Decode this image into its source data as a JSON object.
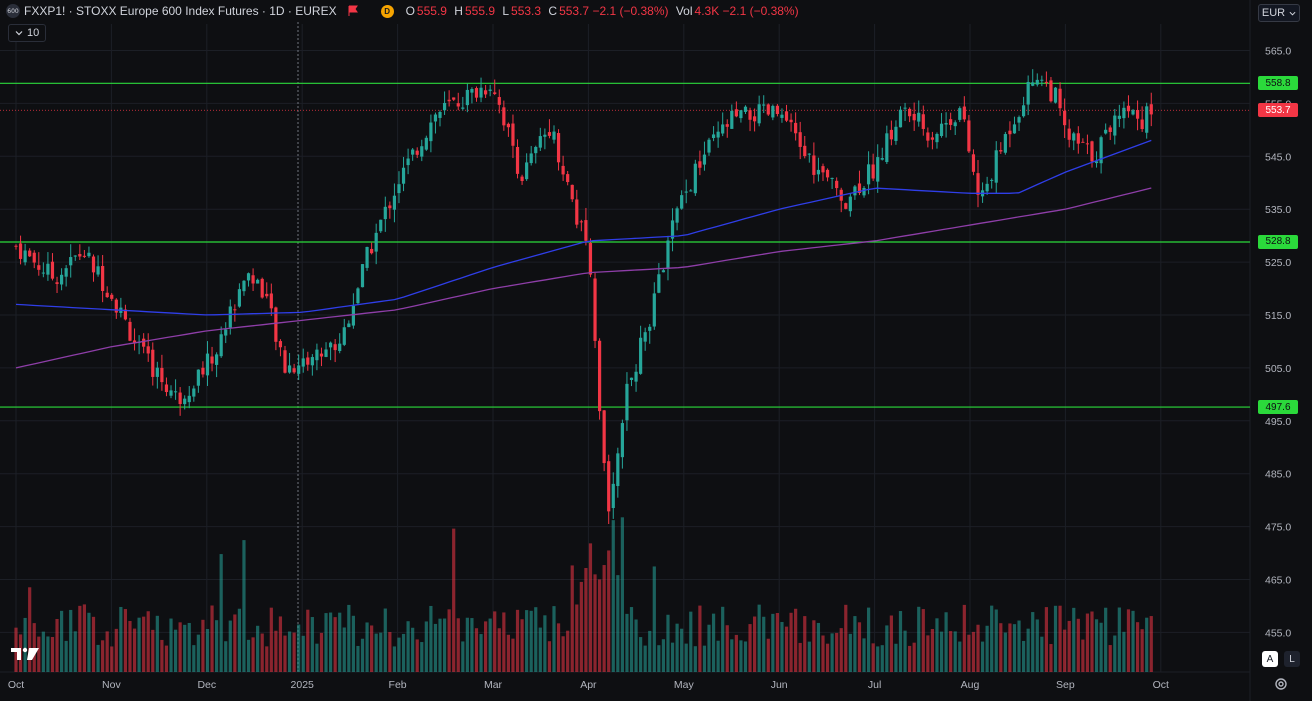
{
  "header": {
    "symbol_badge": "600",
    "title": "FXXP1! · STOXX Europe 600 Index Futures · 1D · EUREX",
    "exchange_badge": "D",
    "ohlc": {
      "o_label": "O",
      "o_value": "555.9",
      "h_label": "H",
      "h_value": "555.9",
      "l_label": "L",
      "l_value": "553.3",
      "c_label": "C",
      "c_value": "553.7 −2.1 (−0.38%)",
      "vol_label": "Vol",
      "vol_value": "4.3K −2.1 (−0.38%)"
    },
    "indicator_count": "10",
    "currency": "EUR"
  },
  "controls": {
    "auto_label": "A",
    "log_label": "L"
  },
  "colors": {
    "up": "#26a69a",
    "down": "#f23645",
    "level": "#2bd93b",
    "ma_fast": "#2f3ee8",
    "ma_slow": "#8e3ea8"
  },
  "chart_data": {
    "type": "candlestick",
    "symbol": "FXXP1!",
    "interval": "1D",
    "price_axis": {
      "ticks": [
        "565.0",
        "555.0",
        "545.0",
        "535.0",
        "525.0",
        "515.0",
        "505.0",
        "495.0",
        "485.0",
        "475.0",
        "465.0",
        "455.0"
      ],
      "range": [
        448,
        568
      ]
    },
    "time_axis": {
      "labels": [
        "Oct",
        "Nov",
        "Dec",
        "2025",
        "Feb",
        "Mar",
        "Apr",
        "May",
        "Jun",
        "Jul",
        "Aug",
        "Sep",
        "Oct"
      ]
    },
    "horizontal_levels": [
      {
        "value": 558.8,
        "label": "558.8"
      },
      {
        "value": 528.8,
        "label": "528.8"
      },
      {
        "value": 497.6,
        "label": "497.6"
      }
    ],
    "last_price": {
      "value": 553.7,
      "label": "553.7"
    },
    "price_path": [
      {
        "m": 0,
        "p": 528
      },
      {
        "m": 0.4,
        "p": 522
      },
      {
        "m": 0.7,
        "p": 527
      },
      {
        "m": 1,
        "p": 519
      },
      {
        "m": 1.3,
        "p": 508
      },
      {
        "m": 1.7,
        "p": 499
      },
      {
        "m": 2.1,
        "p": 508
      },
      {
        "m": 2.4,
        "p": 523
      },
      {
        "m": 2.6,
        "p": 520
      },
      {
        "m": 2.8,
        "p": 505
      },
      {
        "m": 3,
        "p": 506
      },
      {
        "m": 3.4,
        "p": 510
      },
      {
        "m": 3.7,
        "p": 527
      },
      {
        "m": 4,
        "p": 540
      },
      {
        "m": 4.4,
        "p": 553
      },
      {
        "m": 4.7,
        "p": 556
      },
      {
        "m": 5,
        "p": 559
      },
      {
        "m": 5.3,
        "p": 541
      },
      {
        "m": 5.6,
        "p": 551
      },
      {
        "m": 5.9,
        "p": 532
      },
      {
        "m": 6.0,
        "p": 527
      },
      {
        "m": 6.1,
        "p": 500
      },
      {
        "m": 6.2,
        "p": 478
      },
      {
        "m": 6.4,
        "p": 500
      },
      {
        "m": 6.7,
        "p": 518
      },
      {
        "m": 6.9,
        "p": 533
      },
      {
        "m": 7.2,
        "p": 545
      },
      {
        "m": 7.5,
        "p": 552
      },
      {
        "m": 7.8,
        "p": 553
      },
      {
        "m": 8,
        "p": 553
      },
      {
        "m": 8.4,
        "p": 542
      },
      {
        "m": 8.7,
        "p": 537
      },
      {
        "m": 9,
        "p": 543
      },
      {
        "m": 9.3,
        "p": 554
      },
      {
        "m": 9.6,
        "p": 549
      },
      {
        "m": 9.9,
        "p": 554
      },
      {
        "m": 10.1,
        "p": 536
      },
      {
        "m": 10.4,
        "p": 550
      },
      {
        "m": 10.7,
        "p": 561
      },
      {
        "m": 10.9,
        "p": 556
      },
      {
        "m": 11,
        "p": 549
      },
      {
        "m": 11.3,
        "p": 545
      },
      {
        "m": 11.6,
        "p": 555
      },
      {
        "m": 11.8,
        "p": 552
      },
      {
        "m": 11.9,
        "p": 553.7
      }
    ],
    "ma_fast": [
      {
        "m": 0,
        "p": 517
      },
      {
        "m": 1,
        "p": 516
      },
      {
        "m": 2,
        "p": 515
      },
      {
        "m": 3,
        "p": 515.5
      },
      {
        "m": 4,
        "p": 518
      },
      {
        "m": 5,
        "p": 524
      },
      {
        "m": 6,
        "p": 529
      },
      {
        "m": 7,
        "p": 530
      },
      {
        "m": 8,
        "p": 535
      },
      {
        "m": 9,
        "p": 539
      },
      {
        "m": 10,
        "p": 538
      },
      {
        "m": 10.5,
        "p": 538
      },
      {
        "m": 11,
        "p": 542
      },
      {
        "m": 11.9,
        "p": 548
      }
    ],
    "ma_slow": [
      {
        "m": 0,
        "p": 505
      },
      {
        "m": 1,
        "p": 509
      },
      {
        "m": 2,
        "p": 512
      },
      {
        "m": 3,
        "p": 514
      },
      {
        "m": 4,
        "p": 516
      },
      {
        "m": 5,
        "p": 520
      },
      {
        "m": 6,
        "p": 523
      },
      {
        "m": 7,
        "p": 524
      },
      {
        "m": 8,
        "p": 527
      },
      {
        "m": 9,
        "p": 529
      },
      {
        "m": 10,
        "p": 532
      },
      {
        "m": 11,
        "p": 535
      },
      {
        "m": 11.9,
        "p": 539
      }
    ]
  }
}
